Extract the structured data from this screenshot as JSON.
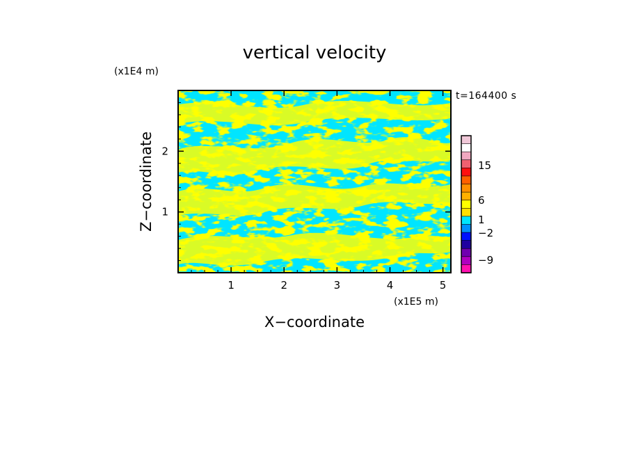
{
  "chart_data": {
    "type": "heatmap",
    "title": "vertical velocity",
    "xlabel": "X−coordinate",
    "ylabel": "Z−coordinate",
    "x_scale_label": "(x1E5 m)",
    "y_scale_label": "(x1E4 m)",
    "time_label": "t=164400 s",
    "xlim": [
      0,
      5.15
    ],
    "ylim": [
      0,
      3.0
    ],
    "x_ticks": [
      {
        "value": 1,
        "label": "1"
      },
      {
        "value": 2,
        "label": "2"
      },
      {
        "value": 3,
        "label": "3"
      },
      {
        "value": 4,
        "label": "4"
      },
      {
        "value": 5,
        "label": "5"
      }
    ],
    "y_ticks": [
      {
        "value": 1,
        "label": "1"
      },
      {
        "value": 2,
        "label": "2"
      }
    ],
    "field_colors": {
      "updraft": "#ffff00",
      "downdraft": "#00e5ff"
    },
    "colorbar": {
      "tick_labels": [
        {
          "value": 15,
          "label": "15"
        },
        {
          "value": 6,
          "label": "6"
        },
        {
          "value": 1,
          "label": "1"
        },
        {
          "value": -2,
          "label": "−2"
        },
        {
          "value": -9,
          "label": "−9"
        }
      ],
      "bands": [
        {
          "color": "#f0c8d8"
        },
        {
          "color": "#ffffff"
        },
        {
          "color": "#f0a8c0"
        },
        {
          "color": "#f06070"
        },
        {
          "color": "#ff1010"
        },
        {
          "color": "#ff6000"
        },
        {
          "color": "#ff9000"
        },
        {
          "color": "#ffb000"
        },
        {
          "color": "#ffff00"
        },
        {
          "color": "#ffe000"
        },
        {
          "color": "#00e5ff"
        },
        {
          "color": "#0090ff"
        },
        {
          "color": "#0010ff"
        },
        {
          "color": "#2000a0"
        },
        {
          "color": "#7000b0"
        },
        {
          "color": "#b000c0"
        },
        {
          "color": "#ff10b0"
        }
      ]
    }
  }
}
